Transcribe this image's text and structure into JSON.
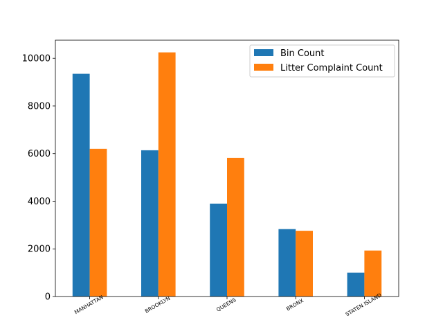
{
  "chart_data": {
    "type": "bar",
    "categories": [
      "MANHATTAN",
      "BROOKLYN",
      "QUEENS",
      "BRONX",
      "STATEN ISLAND"
    ],
    "series": [
      {
        "name": "Bin Count",
        "values": [
          9350,
          6140,
          3900,
          2830,
          1000
        ],
        "color": "#1f77b4"
      },
      {
        "name": "Litter Complaint Count",
        "values": [
          6200,
          10250,
          5820,
          2760,
          1930
        ],
        "color": "#ff7f0e"
      }
    ],
    "ylim": [
      0,
      10762
    ],
    "yticks": [
      0,
      2000,
      4000,
      6000,
      8000,
      10000
    ],
    "title": "",
    "xlabel": "",
    "ylabel": "",
    "grid": false,
    "legend_position": "top-right"
  }
}
